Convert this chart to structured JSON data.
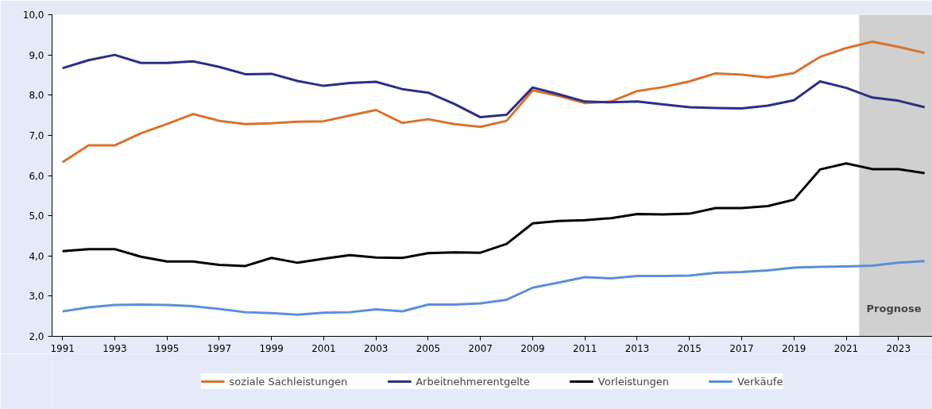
{
  "chart_data": {
    "type": "line",
    "x": [
      1991,
      1992,
      1993,
      1994,
      1995,
      1996,
      1997,
      1998,
      1999,
      2000,
      2001,
      2002,
      2003,
      2004,
      2005,
      2006,
      2007,
      2008,
      2009,
      2010,
      2011,
      2012,
      2013,
      2014,
      2015,
      2016,
      2017,
      2018,
      2019,
      2020,
      2021,
      2022,
      2023,
      2024
    ],
    "series": [
      {
        "name": "soziale Sachleistungen",
        "color": "#d9722e",
        "values": [
          6.33,
          6.75,
          6.75,
          7.05,
          7.28,
          7.53,
          7.36,
          7.28,
          7.3,
          7.34,
          7.35,
          7.49,
          7.63,
          7.31,
          7.4,
          7.28,
          7.21,
          7.36,
          8.12,
          7.98,
          7.8,
          7.84,
          8.1,
          8.2,
          8.34,
          8.54,
          8.51,
          8.44,
          8.55,
          8.95,
          9.17,
          9.33,
          9.2,
          9.05
        ]
      },
      {
        "name": "Arbeitnehmerentgelte",
        "color": "#2b2f86",
        "values": [
          8.67,
          8.87,
          9.0,
          8.8,
          8.8,
          8.84,
          8.7,
          8.52,
          8.53,
          8.35,
          8.23,
          8.3,
          8.33,
          8.15,
          8.06,
          7.78,
          7.45,
          7.51,
          8.19,
          8.02,
          7.84,
          7.82,
          7.84,
          7.77,
          7.7,
          7.68,
          7.67,
          7.74,
          7.87,
          8.34,
          8.18,
          7.94,
          7.86,
          7.7
        ]
      },
      {
        "name": "Vorleistungen",
        "color": "#000000",
        "values": [
          4.12,
          4.17,
          4.17,
          3.98,
          3.86,
          3.86,
          3.78,
          3.75,
          3.95,
          3.83,
          3.93,
          4.02,
          3.96,
          3.95,
          4.07,
          4.09,
          4.08,
          4.3,
          4.81,
          4.87,
          4.89,
          4.94,
          5.04,
          5.03,
          5.05,
          5.19,
          5.19,
          5.24,
          5.4,
          6.15,
          6.3,
          6.16,
          6.16,
          6.06
        ]
      },
      {
        "name": "Verkäufe",
        "color": "#5b8fd8",
        "values": [
          2.62,
          2.72,
          2.78,
          2.79,
          2.78,
          2.75,
          2.68,
          2.6,
          2.58,
          2.54,
          2.59,
          2.6,
          2.67,
          2.62,
          2.79,
          2.79,
          2.82,
          2.91,
          3.21,
          3.34,
          3.47,
          3.44,
          3.5,
          3.5,
          3.51,
          3.58,
          3.6,
          3.64,
          3.71,
          3.73,
          3.74,
          3.76,
          3.83,
          3.87
        ]
      }
    ],
    "xlim": [
      1990.6,
      2024.3
    ],
    "xticks": [
      1991,
      1993,
      1995,
      1997,
      1999,
      2001,
      2003,
      2005,
      2007,
      2009,
      2011,
      2013,
      2015,
      2017,
      2019,
      2021,
      2023
    ],
    "ylim": [
      2.0,
      10.0
    ],
    "yticks": [
      {
        "value": 2,
        "label": "2,0"
      },
      {
        "value": 3,
        "label": "3,0"
      },
      {
        "value": 4,
        "label": "4,0"
      },
      {
        "value": 5,
        "label": "5,0"
      },
      {
        "value": 6,
        "label": "6,0"
      },
      {
        "value": 7,
        "label": "7,0"
      },
      {
        "value": 8,
        "label": "8,0"
      },
      {
        "value": 9,
        "label": "9,0"
      },
      {
        "value": 10,
        "label": "10,0"
      }
    ],
    "bands": [
      {
        "axis": "x",
        "from": 2021.5,
        "to": 2024.3,
        "label": "Prognose",
        "color": "#d0d0d0"
      }
    ],
    "legend": "bottom",
    "grid": false,
    "line_style": "solid",
    "marker": "none"
  }
}
